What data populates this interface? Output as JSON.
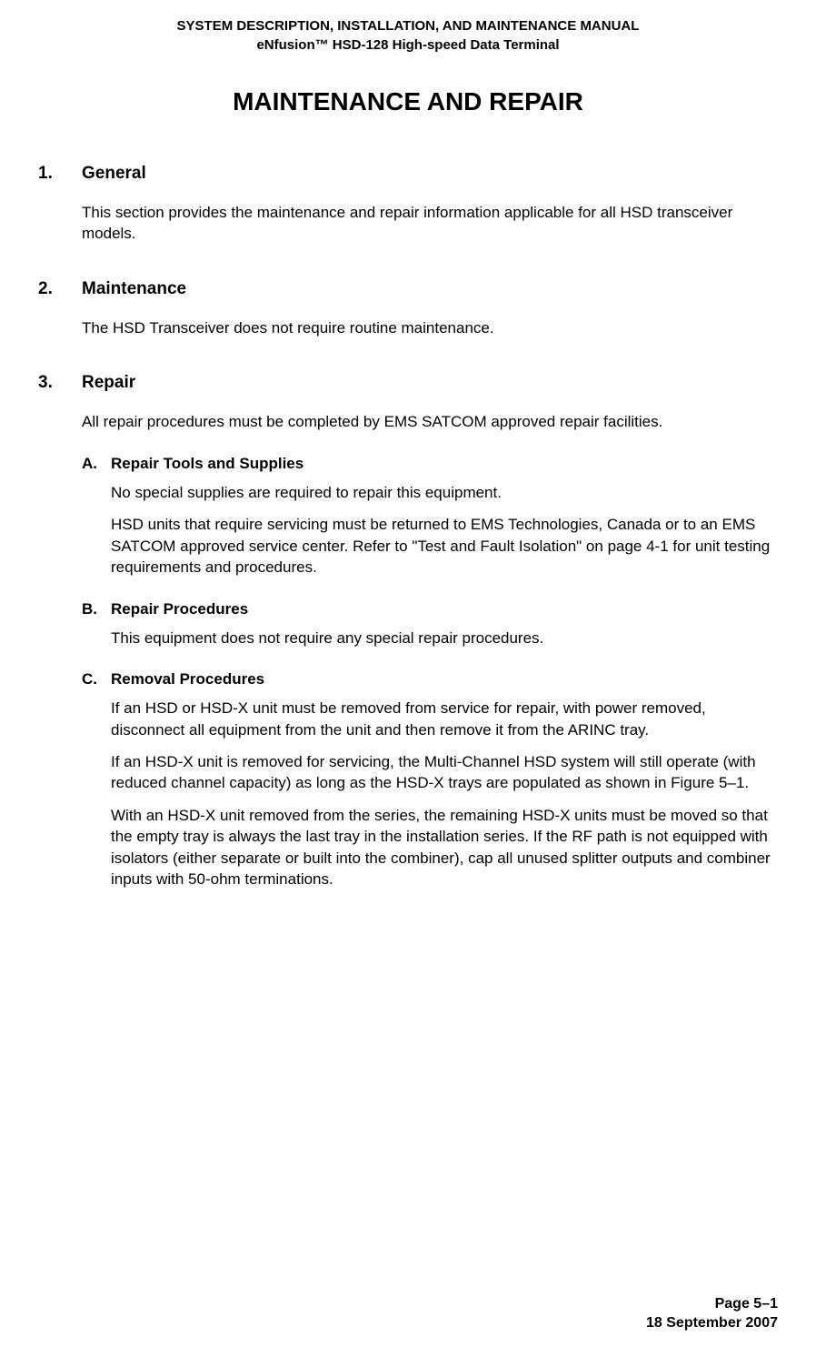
{
  "header": {
    "line1": "SYSTEM DESCRIPTION, INSTALLATION, AND MAINTENANCE MANUAL",
    "line2": "eNfusion™ HSD-128 High-speed Data Terminal"
  },
  "main_title": "MAINTENANCE AND REPAIR",
  "sections": [
    {
      "number": "1.",
      "title": "General",
      "body": "This section provides the maintenance and repair information applicable for all HSD transceiver models."
    },
    {
      "number": "2.",
      "title": "Maintenance",
      "body": "The HSD Transceiver does not require routine maintenance."
    },
    {
      "number": "3.",
      "title": "Repair",
      "body": "All repair procedures must be completed by EMS SATCOM approved repair facilities.",
      "subsections": [
        {
          "letter": "A.",
          "title": "Repair Tools and Supplies",
          "paragraphs": [
            "No special supplies are required to repair this equipment.",
            "HSD units that require servicing must be returned to EMS Technologies, Canada or to an EMS SATCOM approved service center. Refer to \"Test and Fault Isolation\" on page 4-1 for unit testing requirements and procedures."
          ]
        },
        {
          "letter": "B.",
          "title": "Repair Procedures",
          "paragraphs": [
            "This equipment does not require any special repair procedures."
          ]
        },
        {
          "letter": "C.",
          "title": "Removal Procedures",
          "paragraphs": [
            "If an HSD or HSD-X unit must be removed from service for repair, with power removed, disconnect all equipment from the unit and then remove it from the ARINC tray.",
            "If an HSD-X unit is removed for servicing, the Multi-Channel HSD system will still operate (with reduced channel capacity) as long as the HSD-X trays are populated as shown in Figure 5–1.",
            "With an HSD-X unit removed from the series, the remaining HSD-X units must be moved so that the empty tray is always the last tray in the installation series. If the RF path is not equipped with isolators (either separate or built into the combiner), cap all unused splitter outputs and combiner inputs with 50-ohm terminations."
          ]
        }
      ]
    }
  ],
  "footer": {
    "page": "Page 5–1",
    "date": "18 September 2007"
  }
}
